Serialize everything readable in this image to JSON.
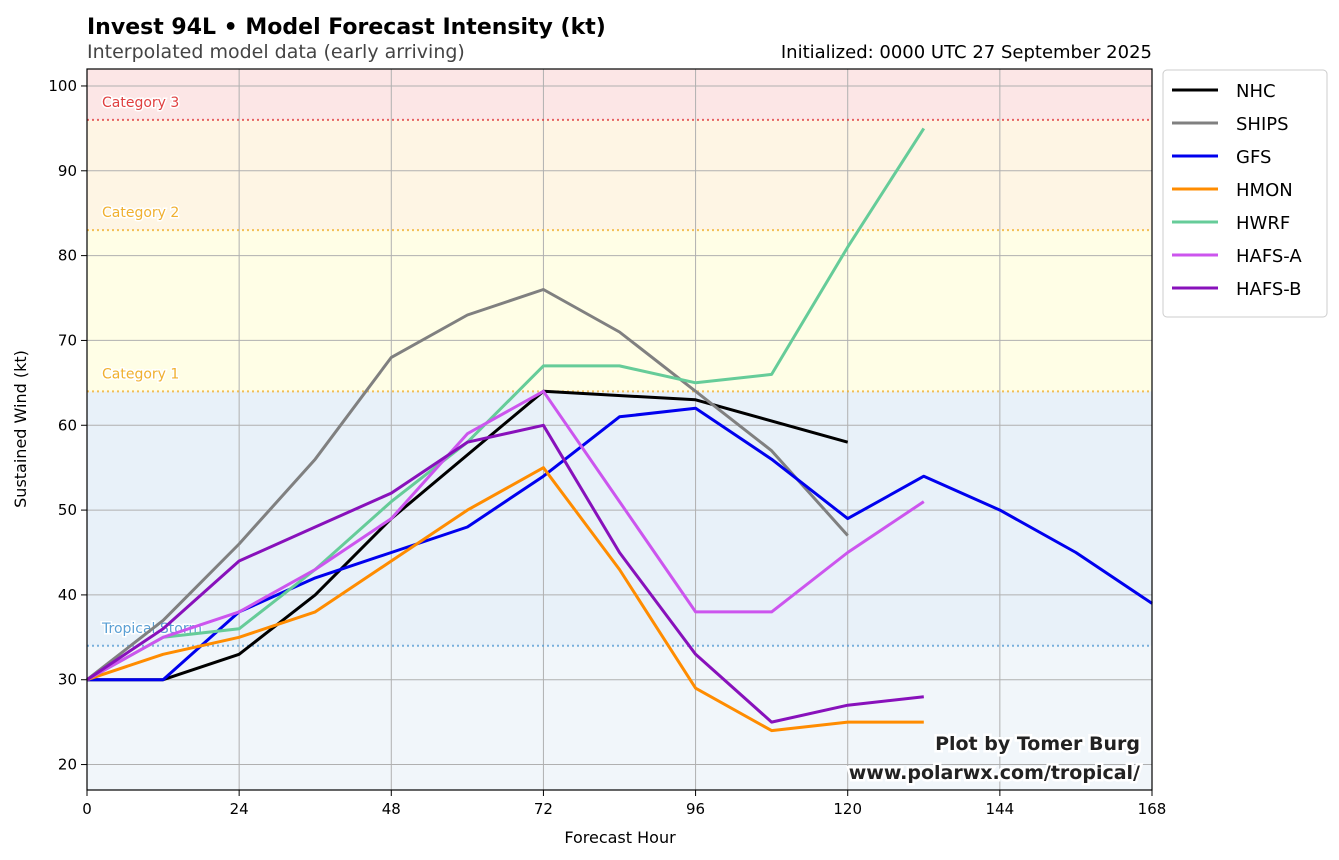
{
  "header": {
    "title": "Invest 94L • Model Forecast Intensity (kt)",
    "subtitle": "Interpolated model data (early arriving)",
    "initialized": "Initialized: 0000 UTC 27 September 2025"
  },
  "credit": {
    "line1": "Plot by Tomer Burg",
    "line2": "www.polarwx.com/tropical/"
  },
  "chart_data": {
    "type": "line",
    "xlabel": "Forecast Hour",
    "ylabel": "Sustained Wind (kt)",
    "xlim": [
      0,
      168
    ],
    "ylim": [
      17,
      102
    ],
    "xticks": [
      0,
      24,
      48,
      72,
      96,
      120,
      144,
      168
    ],
    "yticks": [
      20,
      30,
      40,
      50,
      60,
      70,
      80,
      90,
      100
    ],
    "grid": true,
    "legend_position": "outside-right-top",
    "bands": [
      {
        "from": 17,
        "to": 34,
        "color": "#f1f6fa"
      },
      {
        "from": 34,
        "to": 64,
        "color": "#e8f1f9"
      },
      {
        "from": 64,
        "to": 83,
        "color": "#fffee6"
      },
      {
        "from": 83,
        "to": 96,
        "color": "#fef5e4"
      },
      {
        "from": 96,
        "to": 102,
        "color": "#fce6e6"
      }
    ],
    "thresholds": [
      {
        "label": "Tropical Storm",
        "value": 34,
        "color": "#5a9fd4"
      },
      {
        "label": "Category 1",
        "value": 64,
        "color": "#f0b030"
      },
      {
        "label": "Category 2",
        "value": 83,
        "color": "#f0b030"
      },
      {
        "label": "Category 3",
        "value": 96,
        "color": "#e04040"
      }
    ],
    "series": [
      {
        "name": "NHC",
        "color": "#000000",
        "x": [
          0,
          12,
          24,
          36,
          48,
          72,
          96,
          120
        ],
        "y": [
          30,
          30,
          33,
          40,
          49,
          64,
          63,
          58
        ]
      },
      {
        "name": "SHIPS",
        "color": "#808080",
        "x": [
          0,
          12,
          24,
          36,
          48,
          60,
          72,
          84,
          96,
          108,
          120
        ],
        "y": [
          30,
          37,
          46,
          56,
          68,
          73,
          76,
          71,
          64,
          57,
          47
        ]
      },
      {
        "name": "GFS",
        "color": "#0000ee",
        "x": [
          0,
          12,
          24,
          36,
          48,
          60,
          72,
          84,
          96,
          108,
          120,
          132,
          144,
          156,
          168
        ],
        "y": [
          30,
          30,
          38,
          42,
          45,
          48,
          54,
          61,
          62,
          56,
          49,
          54,
          50,
          45,
          39
        ]
      },
      {
        "name": "HMON",
        "color": "#ff8c00",
        "x": [
          0,
          12,
          24,
          36,
          48,
          60,
          72,
          84,
          96,
          108,
          120,
          132
        ],
        "y": [
          30,
          33,
          35,
          38,
          44,
          50,
          55,
          43,
          29,
          24,
          25,
          25
        ]
      },
      {
        "name": "HWRF",
        "color": "#66cc99",
        "x": [
          0,
          12,
          24,
          36,
          48,
          60,
          72,
          84,
          96,
          108,
          120,
          132
        ],
        "y": [
          30,
          35,
          36,
          43,
          51,
          58,
          67,
          67,
          65,
          66,
          81,
          95
        ]
      },
      {
        "name": "HAFS-A",
        "color": "#cc55ee",
        "x": [
          0,
          12,
          24,
          36,
          48,
          60,
          72,
          84,
          96,
          108,
          120,
          132
        ],
        "y": [
          30,
          35,
          38,
          43,
          49,
          59,
          64,
          51,
          38,
          38,
          45,
          51
        ]
      },
      {
        "name": "HAFS-B",
        "color": "#8811bb",
        "x": [
          0,
          12,
          24,
          36,
          48,
          60,
          72,
          84,
          96,
          108,
          120,
          132
        ],
        "y": [
          30,
          36,
          44,
          48,
          52,
          58,
          60,
          45,
          33,
          25,
          27,
          28
        ]
      }
    ]
  }
}
